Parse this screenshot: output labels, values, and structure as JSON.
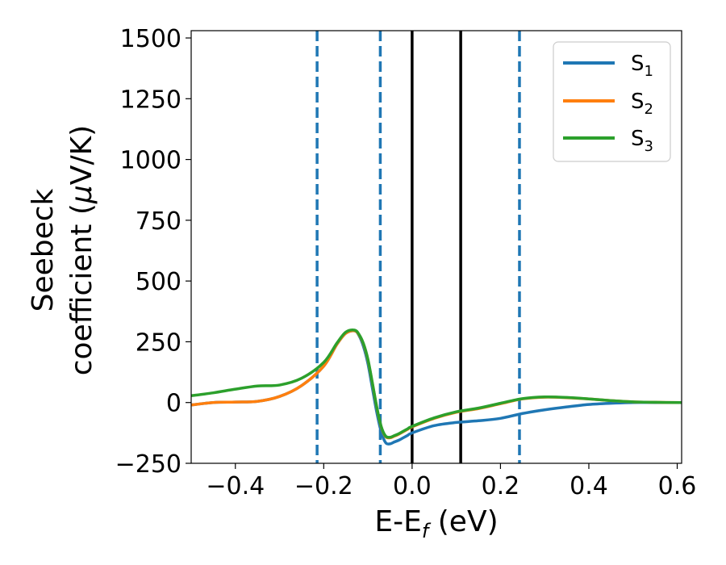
{
  "chart_data": {
    "type": "line",
    "title": "",
    "xlabel_main": "E-E",
    "xlabel_sub": "f",
    "xlabel_unit": " (eV)",
    "ylabel_line1": "Seebeck",
    "ylabel_line2_text": "coefficient  (",
    "ylabel_line2_mu": "μ",
    "ylabel_line2_unit": "V/K)",
    "xlim": [
      -0.5,
      0.61
    ],
    "ylim": [
      -250,
      1530
    ],
    "xticks": [
      -0.4,
      -0.2,
      0.0,
      0.2,
      0.4,
      0.6
    ],
    "xtick_labels": [
      "−0.4",
      "−0.2",
      "0.0",
      "0.2",
      "0.4",
      "0.6"
    ],
    "yticks": [
      -250,
      0,
      250,
      500,
      750,
      1000,
      1250,
      1500
    ],
    "ytick_labels": [
      "−250",
      "0",
      "250",
      "500",
      "750",
      "1000",
      "1250",
      "1500"
    ],
    "grid": false,
    "legend_position": "top-right",
    "series": [
      {
        "name": "S",
        "subscript": "1",
        "color": "#1f77b4",
        "x": [
          -0.5,
          -0.45,
          -0.4,
          -0.35,
          -0.3,
          -0.25,
          -0.2,
          -0.17,
          -0.15,
          -0.13,
          -0.12,
          -0.11,
          -0.1,
          -0.09,
          -0.08,
          -0.07,
          -0.06,
          -0.05,
          -0.04,
          -0.03,
          -0.02,
          -0.01,
          0.0,
          0.05,
          0.1,
          0.15,
          0.2,
          0.25,
          0.3,
          0.35,
          0.4,
          0.45,
          0.5,
          0.55,
          0.61
        ],
        "y": [
          -10,
          0,
          2,
          5,
          25,
          70,
          150,
          240,
          285,
          295,
          275,
          230,
          160,
          60,
          -40,
          -120,
          -165,
          -170,
          -162,
          -155,
          -145,
          -135,
          -125,
          -95,
          -82,
          -75,
          -65,
          -45,
          -30,
          -18,
          -8,
          -3,
          0,
          0,
          0
        ]
      },
      {
        "name": "S",
        "subscript": "2",
        "color": "#ff7f0e",
        "x": [
          -0.5,
          -0.45,
          -0.4,
          -0.35,
          -0.3,
          -0.25,
          -0.2,
          -0.17,
          -0.15,
          -0.13,
          -0.12,
          -0.11,
          -0.1,
          -0.09,
          -0.08,
          -0.07,
          -0.06,
          -0.05,
          -0.04,
          -0.03,
          -0.02,
          -0.01,
          0.0,
          0.05,
          0.1,
          0.15,
          0.2,
          0.25,
          0.3,
          0.35,
          0.4,
          0.45,
          0.5,
          0.55,
          0.61
        ],
        "y": [
          -10,
          0,
          2,
          5,
          25,
          70,
          150,
          240,
          285,
          295,
          278,
          240,
          175,
          80,
          -20,
          -100,
          -140,
          -145,
          -138,
          -130,
          -120,
          -110,
          -100,
          -65,
          -40,
          -25,
          -5,
          15,
          22,
          20,
          15,
          8,
          3,
          1,
          0
        ]
      },
      {
        "name": "S",
        "subscript": "3",
        "color": "#2ca02c",
        "x": [
          -0.5,
          -0.45,
          -0.4,
          -0.35,
          -0.3,
          -0.25,
          -0.2,
          -0.17,
          -0.15,
          -0.13,
          -0.12,
          -0.11,
          -0.1,
          -0.09,
          -0.08,
          -0.07,
          -0.06,
          -0.05,
          -0.04,
          -0.03,
          -0.02,
          -0.01,
          0.0,
          0.05,
          0.1,
          0.15,
          0.2,
          0.25,
          0.3,
          0.35,
          0.4,
          0.45,
          0.5,
          0.55,
          0.61
        ],
        "y": [
          28,
          40,
          55,
          68,
          72,
          100,
          165,
          245,
          290,
          298,
          280,
          242,
          178,
          82,
          -18,
          -98,
          -138,
          -143,
          -136,
          -128,
          -118,
          -108,
          -98,
          -63,
          -38,
          -23,
          -3,
          16,
          23,
          21,
          15,
          8,
          3,
          1,
          0
        ]
      }
    ],
    "vertical_lines": [
      {
        "x": -0.215,
        "color": "#1f77b4",
        "style": "dashed"
      },
      {
        "x": -0.072,
        "color": "#1f77b4",
        "style": "dashed"
      },
      {
        "x": 0.0,
        "color": "#000000",
        "style": "solid"
      },
      {
        "x": 0.11,
        "color": "#000000",
        "style": "solid"
      },
      {
        "x": 0.243,
        "color": "#1f77b4",
        "style": "dashed"
      }
    ]
  }
}
